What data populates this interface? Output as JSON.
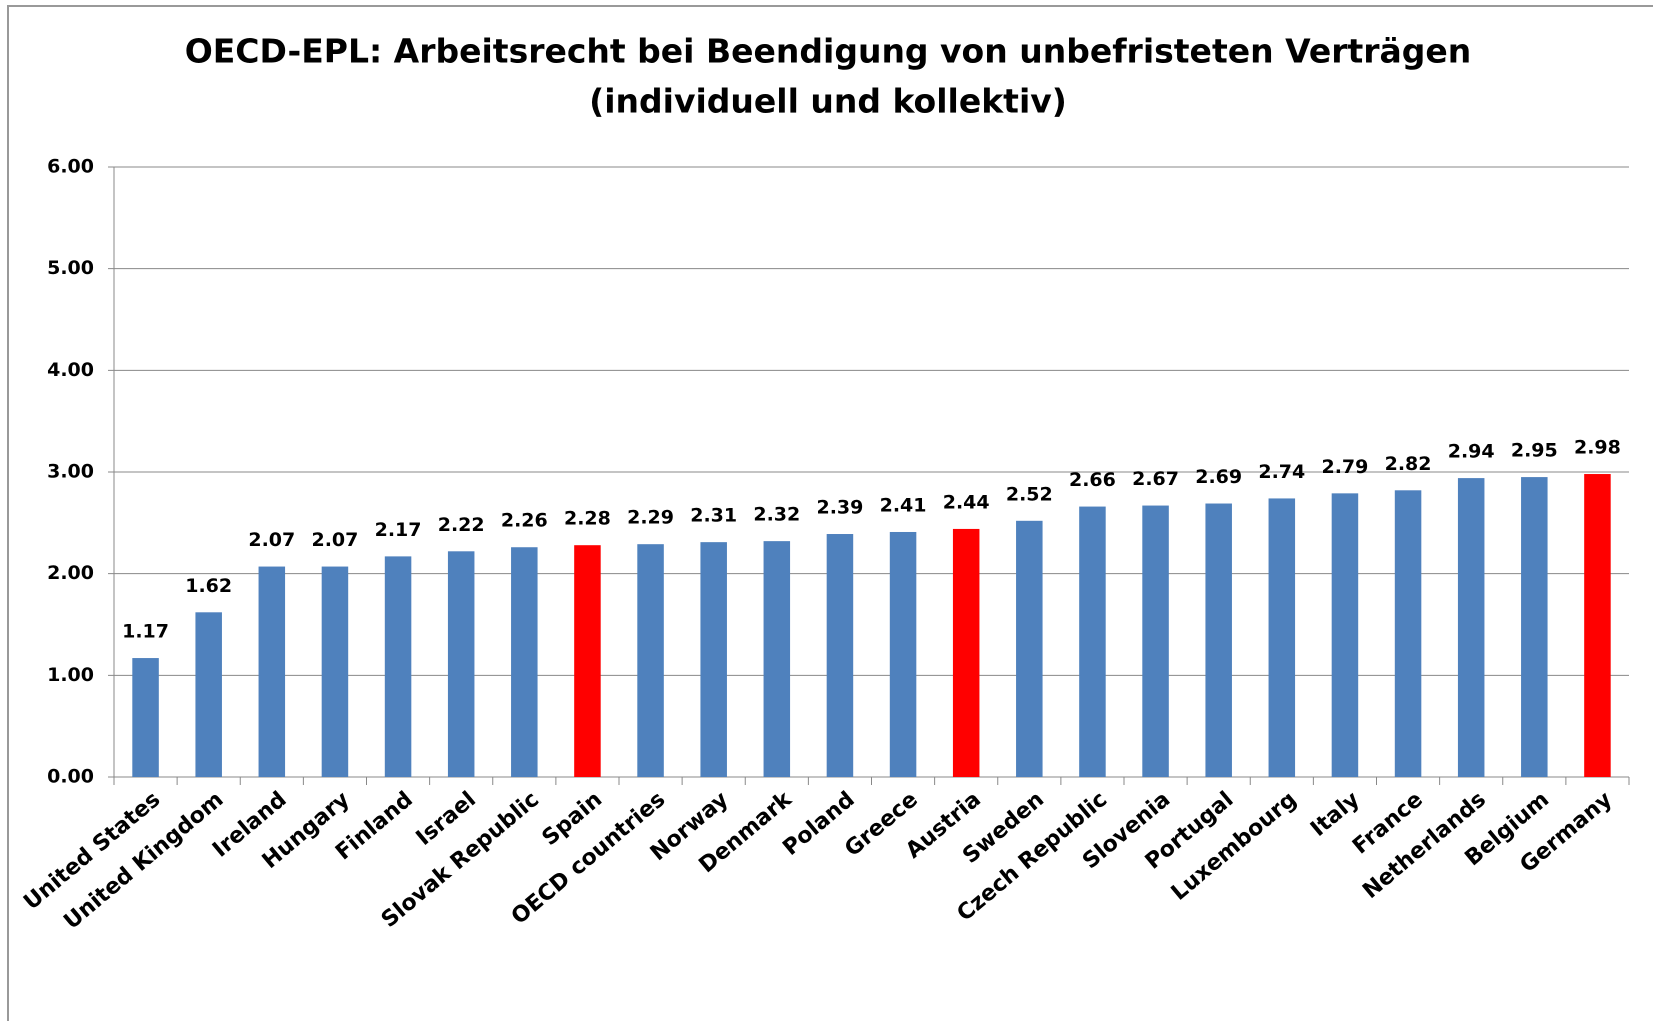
{
  "chart_data": {
    "type": "bar",
    "title": [
      "OECD-EPL: Arbeitsrecht bei Beendigung von unbefristeten Verträgen",
      "(individuell und kollektiv)"
    ],
    "categories": [
      "United States",
      "United Kingdom",
      "Ireland",
      "Hungary",
      "Finland",
      "Israel",
      "Slovak Republic",
      "Spain",
      "OECD countries",
      "Norway",
      "Denmark",
      "Poland",
      "Greece",
      "Austria",
      "Sweden",
      "Czech Republic",
      "Slovenia",
      "Portugal",
      "Luxembourg",
      "Italy",
      "France",
      "Netherlands",
      "Belgium",
      "Germany"
    ],
    "values": [
      1.17,
      1.62,
      2.07,
      2.07,
      2.17,
      2.22,
      2.26,
      2.28,
      2.29,
      2.31,
      2.32,
      2.39,
      2.41,
      2.44,
      2.52,
      2.66,
      2.67,
      2.69,
      2.74,
      2.79,
      2.82,
      2.94,
      2.95,
      2.98
    ],
    "colors": [
      "#4f81bd",
      "#4f81bd",
      "#4f81bd",
      "#4f81bd",
      "#4f81bd",
      "#4f81bd",
      "#4f81bd",
      "#ff0000",
      "#4f81bd",
      "#4f81bd",
      "#4f81bd",
      "#4f81bd",
      "#4f81bd",
      "#ff0000",
      "#4f81bd",
      "#4f81bd",
      "#4f81bd",
      "#4f81bd",
      "#4f81bd",
      "#4f81bd",
      "#4f81bd",
      "#4f81bd",
      "#4f81bd",
      "#ff0000"
    ],
    "ylim": [
      0,
      6
    ],
    "yticks": [
      {
        "value": 0,
        "label": "0.00"
      },
      {
        "value": 1,
        "label": "1.00"
      },
      {
        "value": 2,
        "label": "2.00"
      },
      {
        "value": 3,
        "label": "3.00"
      },
      {
        "value": 4,
        "label": "4.00"
      },
      {
        "value": 5,
        "label": "5.00"
      },
      {
        "value": 6,
        "label": "6.00"
      }
    ],
    "grid": true
  }
}
